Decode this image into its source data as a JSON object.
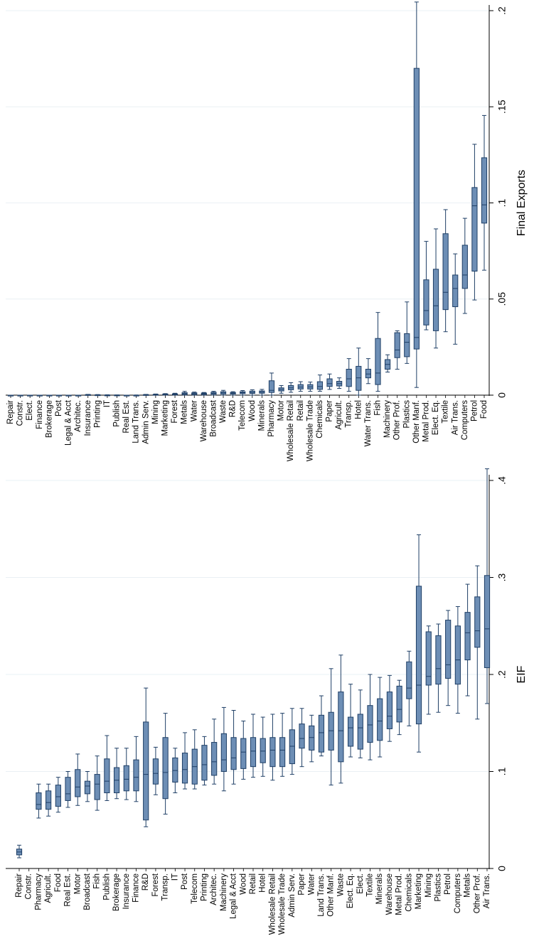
{
  "chart_data": [
    {
      "type": "box",
      "orientation": "rotated-90",
      "ylabel": "Final Exports",
      "ylim": [
        0,
        0.2
      ],
      "yticks": [
        "0",
        ".05",
        ".1",
        ".15",
        ".2"
      ],
      "ytick_values": [
        0,
        0.05,
        0.1,
        0.15,
        0.2
      ],
      "grid": true,
      "box_color": "#6d8eb5",
      "categories": [
        "Repair",
        "Constr.",
        "Elect.",
        "Finance",
        "Brokerage",
        "Post",
        "Legal & Acct",
        "Architec.",
        "Insurance",
        "Printing",
        "IT",
        "Publish",
        "Real Est.",
        "Land Trans.",
        "Admin Serv.",
        "Mining",
        "Marketing",
        "Forest",
        "Metals",
        "Water",
        "Warehouse",
        "Broadcast",
        "Waste",
        "R&D",
        "Telecom",
        "Wood",
        "Minerals",
        "Pharmacy",
        "Motor",
        "Wholesale Retail",
        "Retail",
        "Wholesale Trade",
        "Chemicals",
        "Paper",
        "Agricult.",
        "Transp.",
        "Hotel",
        "Water Trans.",
        "Fish",
        "Machinery",
        "Other Prof.",
        "Plastics",
        "Other Manf.",
        "Metal Prod.",
        "Elect. Eq.",
        "Textile",
        "Air Trans.",
        "Computers",
        "Petrol",
        "Food"
      ],
      "boxes": [
        {
          "min": 0,
          "q1": 0,
          "median": 0,
          "q3": 0,
          "max": 0
        },
        {
          "min": 0,
          "q1": 0,
          "median": 0,
          "q3": 0,
          "max": 0
        },
        {
          "min": 0,
          "q1": 0,
          "median": 0,
          "q3": 0,
          "max": 0
        },
        {
          "min": 0,
          "q1": 0,
          "median": 0,
          "q3": 0,
          "max": 0
        },
        {
          "min": 0,
          "q1": 0,
          "median": 0,
          "q3": 0,
          "max": 0
        },
        {
          "min": 0,
          "q1": 0,
          "median": 0,
          "q3": 0,
          "max": 0
        },
        {
          "min": 0,
          "q1": 0,
          "median": 0,
          "q3": 0,
          "max": 0
        },
        {
          "min": 0,
          "q1": 0,
          "median": 0,
          "q3": 0,
          "max": 0
        },
        {
          "min": 0,
          "q1": 0,
          "median": 0.0002,
          "q3": 0.0003,
          "max": 0.0004
        },
        {
          "min": 0,
          "q1": 0,
          "median": 0.0001,
          "q3": 0.0002,
          "max": 0.0003
        },
        {
          "min": 0,
          "q1": 0,
          "median": 0,
          "q3": 0.0001,
          "max": 0.0002
        },
        {
          "min": 0,
          "q1": 0,
          "median": 0,
          "q3": 0.0001,
          "max": 0.0001
        },
        {
          "min": 0,
          "q1": 0,
          "median": 0,
          "q3": 0,
          "max": 0
        },
        {
          "min": 0,
          "q1": 0,
          "median": 0,
          "q3": 0,
          "max": 0.0001
        },
        {
          "min": 0,
          "q1": 0,
          "median": 0.0002,
          "q3": 0.0003,
          "max": 0.0004
        },
        {
          "min": 0,
          "q1": 0.0001,
          "median": 0.0002,
          "q3": 0.0004,
          "max": 0.0006
        },
        {
          "min": 0,
          "q1": 0.0002,
          "median": 0.0004,
          "q3": 0.0006,
          "max": 0.0008
        },
        {
          "min": 0,
          "q1": 0.0003,
          "median": 0.0005,
          "q3": 0.0007,
          "max": 0.001
        },
        {
          "min": 0,
          "q1": 0.0004,
          "median": 0.0008,
          "q3": 0.0013,
          "max": 0.002
        },
        {
          "min": 0,
          "q1": 0.0004,
          "median": 0.0008,
          "q3": 0.0012,
          "max": 0.0016
        },
        {
          "min": 0,
          "q1": 0.0004,
          "median": 0.0008,
          "q3": 0.0011,
          "max": 0.0014
        },
        {
          "min": 0,
          "q1": 0.0005,
          "median": 0.001,
          "q3": 0.0015,
          "max": 0.002
        },
        {
          "min": 0,
          "q1": 0.0006,
          "median": 0.0012,
          "q3": 0.0018,
          "max": 0.0025
        },
        {
          "min": 0,
          "q1": 0.0006,
          "median": 0.001,
          "q3": 0.0014,
          "max": 0.0018
        },
        {
          "min": 0,
          "q1": 0.0008,
          "median": 0.0013,
          "q3": 0.0018,
          "max": 0.0024
        },
        {
          "min": 0,
          "q1": 0.0009,
          "median": 0.0014,
          "q3": 0.0021,
          "max": 0.0028
        },
        {
          "min": 0,
          "q1": 0.001,
          "median": 0.0016,
          "q3": 0.0022,
          "max": 0.003
        },
        {
          "min": 0,
          "q1": 0.0014,
          "median": 0.0025,
          "q3": 0.0075,
          "max": 0.0115
        },
        {
          "min": 0.001,
          "q1": 0.0022,
          "median": 0.003,
          "q3": 0.0038,
          "max": 0.005
        },
        {
          "min": 0.0015,
          "q1": 0.0028,
          "median": 0.0038,
          "q3": 0.005,
          "max": 0.0065
        },
        {
          "min": 0.002,
          "q1": 0.0032,
          "median": 0.0042,
          "q3": 0.0055,
          "max": 0.007
        },
        {
          "min": 0.002,
          "q1": 0.0032,
          "median": 0.0043,
          "q3": 0.0055,
          "max": 0.0068
        },
        {
          "min": 0.002,
          "q1": 0.003,
          "median": 0.0045,
          "q3": 0.007,
          "max": 0.0105
        },
        {
          "min": 0.003,
          "q1": 0.0045,
          "median": 0.006,
          "q3": 0.0085,
          "max": 0.011
        },
        {
          "min": 0.0035,
          "q1": 0.0048,
          "median": 0.006,
          "q3": 0.0072,
          "max": 0.009
        },
        {
          "min": 0.002,
          "q1": 0.0045,
          "median": 0.0085,
          "q3": 0.0135,
          "max": 0.019
        },
        {
          "min": 0,
          "q1": 0.0025,
          "median": 0.009,
          "q3": 0.015,
          "max": 0.0245
        },
        {
          "min": 0.006,
          "q1": 0.009,
          "median": 0.011,
          "q3": 0.0135,
          "max": 0.019
        },
        {
          "min": 0.002,
          "q1": 0.0055,
          "median": 0.0115,
          "q3": 0.0295,
          "max": 0.043
        },
        {
          "min": 0.012,
          "q1": 0.0135,
          "median": 0.016,
          "q3": 0.0185,
          "max": 0.021
        },
        {
          "min": 0.0135,
          "q1": 0.0195,
          "median": 0.0235,
          "q3": 0.0325,
          "max": 0.0335
        },
        {
          "min": 0.0165,
          "q1": 0.02,
          "median": 0.0275,
          "q3": 0.032,
          "max": 0.0485
        },
        {
          "min": 0.004,
          "q1": 0.024,
          "median": 0.03,
          "q3": 0.17,
          "max": 0.2045
        },
        {
          "min": 0.034,
          "q1": 0.0365,
          "median": 0.044,
          "q3": 0.06,
          "max": 0.08
        },
        {
          "min": 0.0245,
          "q1": 0.0335,
          "median": 0.0465,
          "q3": 0.0655,
          "max": 0.0865
        },
        {
          "min": 0.033,
          "q1": 0.0445,
          "median": 0.0535,
          "q3": 0.084,
          "max": 0.0965
        },
        {
          "min": 0.0265,
          "q1": 0.046,
          "median": 0.0555,
          "q3": 0.0625,
          "max": 0.0735
        },
        {
          "min": 0.0425,
          "q1": 0.0555,
          "median": 0.0625,
          "q3": 0.078,
          "max": 0.092
        },
        {
          "min": 0.0495,
          "q1": 0.0645,
          "median": 0.0985,
          "q3": 0.108,
          "max": 0.1305
        },
        {
          "min": 0.065,
          "q1": 0.0895,
          "median": 0.099,
          "q3": 0.1235,
          "max": 0.1455
        }
      ]
    },
    {
      "type": "box",
      "orientation": "rotated-90",
      "ylabel": "EIF",
      "ylim": [
        0,
        0.4
      ],
      "yticks": [
        "0",
        ".1",
        ".2",
        ".3",
        ".4"
      ],
      "ytick_values": [
        0,
        0.1,
        0.2,
        0.3,
        0.4
      ],
      "grid": true,
      "box_color": "#6d8eb5",
      "categories": [
        "Repair",
        "Constr.",
        "Pharmacy",
        "Agricult.",
        "Food",
        "Real Est.",
        "Motor",
        "Broadcast",
        "Fish",
        "Publish",
        "Brokerage",
        "Insurance",
        "Finance",
        "R&D",
        "Forest",
        "Transp.",
        "IT",
        "Post",
        "Telecom",
        "Printing",
        "Architec.",
        "Machinery",
        "Legal & Acct",
        "Wood",
        "Retail",
        "Hotel",
        "Wholesale Retail",
        "Wholesale Trade",
        "Admin Serv.",
        "Paper",
        "Water",
        "Land Trans.",
        "Other Manf.",
        "Waste",
        "Elect. Eq.",
        "Elect.",
        "Textile",
        "Minerals",
        "Warehouse",
        "Metal Prod.",
        "Chemicals",
        "Marketing",
        "Mining",
        "Plastics",
        "Petrol",
        "Computers",
        "Metals",
        "Other Prof.",
        "Air Trans."
      ],
      "boxes": [
        {
          "min": 0.011,
          "q1": 0.014,
          "median": 0.017,
          "q3": 0.02,
          "max": 0.024
        },
        null,
        {
          "min": 0.052,
          "q1": 0.061,
          "median": 0.066,
          "q3": 0.078,
          "max": 0.087
        },
        {
          "min": 0.054,
          "q1": 0.061,
          "median": 0.068,
          "q3": 0.08,
          "max": 0.087
        },
        {
          "min": 0.058,
          "q1": 0.064,
          "median": 0.074,
          "q3": 0.086,
          "max": 0.094
        },
        {
          "min": 0.063,
          "q1": 0.07,
          "median": 0.077,
          "q3": 0.094,
          "max": 0.1
        },
        {
          "min": 0.065,
          "q1": 0.074,
          "median": 0.084,
          "q3": 0.102,
          "max": 0.118
        },
        {
          "min": 0.069,
          "q1": 0.077,
          "median": 0.085,
          "q3": 0.09,
          "max": 0.1
        },
        {
          "min": 0.06,
          "q1": 0.071,
          "median": 0.087,
          "q3": 0.097,
          "max": 0.116
        },
        {
          "min": 0.07,
          "q1": 0.078,
          "median": 0.09,
          "q3": 0.113,
          "max": 0.137
        },
        {
          "min": 0.072,
          "q1": 0.078,
          "median": 0.091,
          "q3": 0.104,
          "max": 0.124
        },
        {
          "min": 0.071,
          "q1": 0.08,
          "median": 0.092,
          "q3": 0.106,
          "max": 0.124
        },
        {
          "min": 0.069,
          "q1": 0.08,
          "median": 0.094,
          "q3": 0.112,
          "max": 0.136
        },
        {
          "min": 0.043,
          "q1": 0.05,
          "median": 0.097,
          "q3": 0.151,
          "max": 0.186
        },
        {
          "min": 0.076,
          "q1": 0.087,
          "median": 0.098,
          "q3": 0.113,
          "max": 0.125
        },
        {
          "min": 0.056,
          "q1": 0.072,
          "median": 0.099,
          "q3": 0.135,
          "max": 0.16
        },
        {
          "min": 0.078,
          "q1": 0.089,
          "median": 0.101,
          "q3": 0.114,
          "max": 0.124
        },
        {
          "min": 0.082,
          "q1": 0.088,
          "median": 0.102,
          "q3": 0.119,
          "max": 0.14
        },
        {
          "min": 0.082,
          "q1": 0.087,
          "median": 0.105,
          "q3": 0.123,
          "max": 0.143
        },
        {
          "min": 0.086,
          "q1": 0.091,
          "median": 0.107,
          "q3": 0.127,
          "max": 0.136
        },
        {
          "min": 0.087,
          "q1": 0.096,
          "median": 0.11,
          "q3": 0.13,
          "max": 0.154
        },
        {
          "min": 0.08,
          "q1": 0.1,
          "median": 0.112,
          "q3": 0.139,
          "max": 0.166
        },
        {
          "min": 0.087,
          "q1": 0.102,
          "median": 0.114,
          "q3": 0.135,
          "max": 0.163
        },
        {
          "min": 0.092,
          "q1": 0.103,
          "median": 0.12,
          "q3": 0.134,
          "max": 0.152
        },
        {
          "min": 0.094,
          "q1": 0.105,
          "median": 0.121,
          "q3": 0.135,
          "max": 0.159
        },
        {
          "min": 0.095,
          "q1": 0.109,
          "median": 0.121,
          "q3": 0.134,
          "max": 0.156
        },
        {
          "min": 0.091,
          "q1": 0.105,
          "median": 0.122,
          "q3": 0.135,
          "max": 0.159
        },
        {
          "min": 0.095,
          "q1": 0.105,
          "median": 0.122,
          "q3": 0.135,
          "max": 0.16
        },
        {
          "min": 0.097,
          "q1": 0.108,
          "median": 0.126,
          "q3": 0.143,
          "max": 0.165
        },
        {
          "min": 0.105,
          "q1": 0.124,
          "median": 0.134,
          "q3": 0.149,
          "max": 0.165
        },
        {
          "min": 0.11,
          "q1": 0.122,
          "median": 0.135,
          "q3": 0.147,
          "max": 0.158
        },
        {
          "min": 0.116,
          "q1": 0.12,
          "median": 0.14,
          "q3": 0.158,
          "max": 0.178
        },
        {
          "min": 0.086,
          "q1": 0.122,
          "median": 0.142,
          "q3": 0.161,
          "max": 0.206
        },
        {
          "min": 0.088,
          "q1": 0.11,
          "median": 0.142,
          "q3": 0.182,
          "max": 0.22
        },
        {
          "min": 0.115,
          "q1": 0.126,
          "median": 0.145,
          "q3": 0.156,
          "max": 0.19
        },
        {
          "min": 0.114,
          "q1": 0.123,
          "median": 0.145,
          "q3": 0.159,
          "max": 0.184
        },
        {
          "min": 0.112,
          "q1": 0.13,
          "median": 0.148,
          "q3": 0.168,
          "max": 0.2
        },
        {
          "min": 0.115,
          "q1": 0.132,
          "median": 0.152,
          "q3": 0.175,
          "max": 0.197
        },
        {
          "min": 0.131,
          "q1": 0.144,
          "median": 0.157,
          "q3": 0.182,
          "max": 0.199
        },
        {
          "min": 0.138,
          "q1": 0.151,
          "median": 0.164,
          "q3": 0.188,
          "max": 0.194
        },
        {
          "min": 0.147,
          "q1": 0.175,
          "median": 0.186,
          "q3": 0.213,
          "max": 0.224
        },
        {
          "min": 0.12,
          "q1": 0.149,
          "median": 0.189,
          "q3": 0.291,
          "max": 0.344
        },
        {
          "min": 0.159,
          "q1": 0.189,
          "median": 0.198,
          "q3": 0.244,
          "max": 0.25
        },
        {
          "min": 0.161,
          "q1": 0.19,
          "median": 0.206,
          "q3": 0.24,
          "max": 0.252
        },
        {
          "min": 0.168,
          "q1": 0.196,
          "median": 0.21,
          "q3": 0.256,
          "max": 0.266
        },
        {
          "min": 0.16,
          "q1": 0.19,
          "median": 0.215,
          "q3": 0.25,
          "max": 0.27
        },
        {
          "min": 0.178,
          "q1": 0.215,
          "median": 0.243,
          "q3": 0.264,
          "max": 0.293
        },
        {
          "min": 0.154,
          "q1": 0.228,
          "median": 0.245,
          "q3": 0.28,
          "max": 0.312
        },
        {
          "min": 0.17,
          "q1": 0.207,
          "median": 0.247,
          "q3": 0.302,
          "max": 0.412
        }
      ]
    }
  ]
}
